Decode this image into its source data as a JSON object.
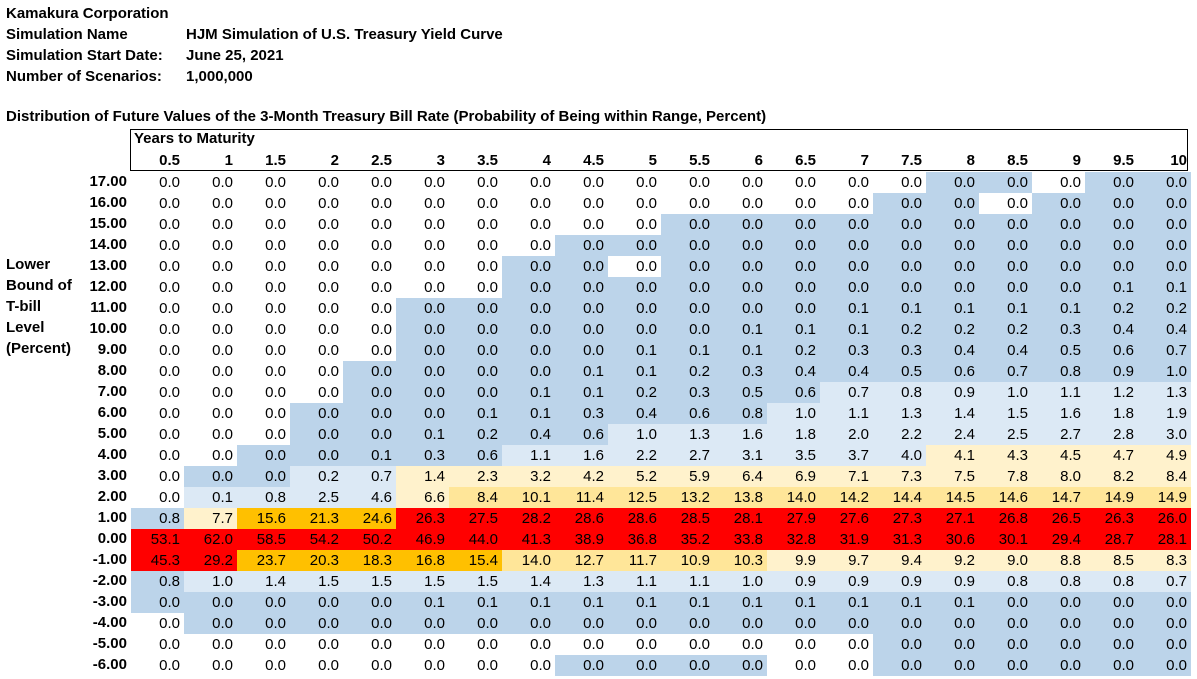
{
  "header": {
    "company": "Kamakura Corporation",
    "sim_name_label": "Simulation Name",
    "sim_name_value": "HJM Simulation of U.S. Treasury Yield Curve",
    "start_label": "Simulation Start Date:",
    "start_value": "June 25, 2021",
    "scenarios_label": "Number of Scenarios:",
    "scenarios_value": "1,000,000"
  },
  "title": "Distribution of Future Values of the 3-Month Treasury Bill Rate (Probability of Being within Range, Percent)",
  "column_group_label": "Years to Maturity",
  "row_axis_label": [
    "Lower",
    "Bound of",
    "T-bill",
    "Level",
    "(Percent)"
  ],
  "colors": {
    "white": "#ffffff",
    "light_blue": "#dce9f5",
    "blue": "#bcd4ea",
    "cream": "#fff2cc",
    "light_orange": "#ffe699",
    "orange": "#ffc000",
    "red": "#ff0000"
  },
  "chart_data": {
    "type": "heatmap",
    "title": "Distribution of Future Values of the 3-Month Treasury Bill Rate (Probability of Being within Range, Percent)",
    "xlabel": "Years to Maturity",
    "ylabel": "Lower Bound of T-bill Level (Percent)",
    "x": [
      "0.5",
      "1",
      "1.5",
      "2",
      "2.5",
      "3",
      "3.5",
      "4",
      "4.5",
      "5",
      "5.5",
      "6",
      "6.5",
      "7",
      "7.5",
      "8",
      "8.5",
      "9",
      "9.5",
      "10"
    ],
    "y": [
      "17.00",
      "16.00",
      "15.00",
      "14.00",
      "13.00",
      "12.00",
      "11.00",
      "10.00",
      "9.00",
      "8.00",
      "7.00",
      "6.00",
      "5.00",
      "4.00",
      "3.00",
      "2.00",
      "1.00",
      "0.00",
      "-1.00",
      "-2.00",
      "-3.00",
      "-4.00",
      "-5.00",
      "-6.00"
    ],
    "values": [
      [
        "0.0",
        "0.0",
        "0.0",
        "0.0",
        "0.0",
        "0.0",
        "0.0",
        "0.0",
        "0.0",
        "0.0",
        "0.0",
        "0.0",
        "0.0",
        "0.0",
        "0.0",
        "0.0",
        "0.0",
        "0.0",
        "0.0",
        "0.0"
      ],
      [
        "0.0",
        "0.0",
        "0.0",
        "0.0",
        "0.0",
        "0.0",
        "0.0",
        "0.0",
        "0.0",
        "0.0",
        "0.0",
        "0.0",
        "0.0",
        "0.0",
        "0.0",
        "0.0",
        "0.0",
        "0.0",
        "0.0",
        "0.0"
      ],
      [
        "0.0",
        "0.0",
        "0.0",
        "0.0",
        "0.0",
        "0.0",
        "0.0",
        "0.0",
        "0.0",
        "0.0",
        "0.0",
        "0.0",
        "0.0",
        "0.0",
        "0.0",
        "0.0",
        "0.0",
        "0.0",
        "0.0",
        "0.0"
      ],
      [
        "0.0",
        "0.0",
        "0.0",
        "0.0",
        "0.0",
        "0.0",
        "0.0",
        "0.0",
        "0.0",
        "0.0",
        "0.0",
        "0.0",
        "0.0",
        "0.0",
        "0.0",
        "0.0",
        "0.0",
        "0.0",
        "0.0",
        "0.0"
      ],
      [
        "0.0",
        "0.0",
        "0.0",
        "0.0",
        "0.0",
        "0.0",
        "0.0",
        "0.0",
        "0.0",
        "0.0",
        "0.0",
        "0.0",
        "0.0",
        "0.0",
        "0.0",
        "0.0",
        "0.0",
        "0.0",
        "0.0",
        "0.0"
      ],
      [
        "0.0",
        "0.0",
        "0.0",
        "0.0",
        "0.0",
        "0.0",
        "0.0",
        "0.0",
        "0.0",
        "0.0",
        "0.0",
        "0.0",
        "0.0",
        "0.0",
        "0.0",
        "0.0",
        "0.0",
        "0.0",
        "0.1",
        "0.1"
      ],
      [
        "0.0",
        "0.0",
        "0.0",
        "0.0",
        "0.0",
        "0.0",
        "0.0",
        "0.0",
        "0.0",
        "0.0",
        "0.0",
        "0.0",
        "0.0",
        "0.1",
        "0.1",
        "0.1",
        "0.1",
        "0.1",
        "0.2",
        "0.2"
      ],
      [
        "0.0",
        "0.0",
        "0.0",
        "0.0",
        "0.0",
        "0.0",
        "0.0",
        "0.0",
        "0.0",
        "0.0",
        "0.0",
        "0.1",
        "0.1",
        "0.1",
        "0.2",
        "0.2",
        "0.2",
        "0.3",
        "0.4",
        "0.4"
      ],
      [
        "0.0",
        "0.0",
        "0.0",
        "0.0",
        "0.0",
        "0.0",
        "0.0",
        "0.0",
        "0.0",
        "0.1",
        "0.1",
        "0.1",
        "0.2",
        "0.3",
        "0.3",
        "0.4",
        "0.4",
        "0.5",
        "0.6",
        "0.7"
      ],
      [
        "0.0",
        "0.0",
        "0.0",
        "0.0",
        "0.0",
        "0.0",
        "0.0",
        "0.0",
        "0.1",
        "0.1",
        "0.2",
        "0.3",
        "0.4",
        "0.4",
        "0.5",
        "0.6",
        "0.7",
        "0.8",
        "0.9",
        "1.0"
      ],
      [
        "0.0",
        "0.0",
        "0.0",
        "0.0",
        "0.0",
        "0.0",
        "0.0",
        "0.1",
        "0.1",
        "0.2",
        "0.3",
        "0.5",
        "0.6",
        "0.7",
        "0.8",
        "0.9",
        "1.0",
        "1.1",
        "1.2",
        "1.3"
      ],
      [
        "0.0",
        "0.0",
        "0.0",
        "0.0",
        "0.0",
        "0.0",
        "0.1",
        "0.1",
        "0.3",
        "0.4",
        "0.6",
        "0.8",
        "1.0",
        "1.1",
        "1.3",
        "1.4",
        "1.5",
        "1.6",
        "1.8",
        "1.9"
      ],
      [
        "0.0",
        "0.0",
        "0.0",
        "0.0",
        "0.0",
        "0.1",
        "0.2",
        "0.4",
        "0.6",
        "1.0",
        "1.3",
        "1.6",
        "1.8",
        "2.0",
        "2.2",
        "2.4",
        "2.5",
        "2.7",
        "2.8",
        "3.0"
      ],
      [
        "0.0",
        "0.0",
        "0.0",
        "0.0",
        "0.1",
        "0.3",
        "0.6",
        "1.1",
        "1.6",
        "2.2",
        "2.7",
        "3.1",
        "3.5",
        "3.7",
        "4.0",
        "4.1",
        "4.3",
        "4.5",
        "4.7",
        "4.9"
      ],
      [
        "0.0",
        "0.0",
        "0.0",
        "0.2",
        "0.7",
        "1.4",
        "2.3",
        "3.2",
        "4.2",
        "5.2",
        "5.9",
        "6.4",
        "6.9",
        "7.1",
        "7.3",
        "7.5",
        "7.8",
        "8.0",
        "8.2",
        "8.4"
      ],
      [
        "0.0",
        "0.1",
        "0.8",
        "2.5",
        "4.6",
        "6.6",
        "8.4",
        "10.1",
        "11.4",
        "12.5",
        "13.2",
        "13.8",
        "14.0",
        "14.2",
        "14.4",
        "14.5",
        "14.6",
        "14.7",
        "14.9",
        "14.9"
      ],
      [
        "0.8",
        "7.7",
        "15.6",
        "21.3",
        "24.6",
        "26.3",
        "27.5",
        "28.2",
        "28.6",
        "28.6",
        "28.5",
        "28.1",
        "27.9",
        "27.6",
        "27.3",
        "27.1",
        "26.8",
        "26.5",
        "26.3",
        "26.0"
      ],
      [
        "53.1",
        "62.0",
        "58.5",
        "54.2",
        "50.2",
        "46.9",
        "44.0",
        "41.3",
        "38.9",
        "36.8",
        "35.2",
        "33.8",
        "32.8",
        "31.9",
        "31.3",
        "30.6",
        "30.1",
        "29.4",
        "28.7",
        "28.1"
      ],
      [
        "45.3",
        "29.2",
        "23.7",
        "20.3",
        "18.3",
        "16.8",
        "15.4",
        "14.0",
        "12.7",
        "11.7",
        "10.9",
        "10.3",
        "9.9",
        "9.7",
        "9.4",
        "9.2",
        "9.0",
        "8.8",
        "8.5",
        "8.3"
      ],
      [
        "0.8",
        "1.0",
        "1.4",
        "1.5",
        "1.5",
        "1.5",
        "1.5",
        "1.4",
        "1.3",
        "1.1",
        "1.1",
        "1.0",
        "0.9",
        "0.9",
        "0.9",
        "0.9",
        "0.8",
        "0.8",
        "0.8",
        "0.7"
      ],
      [
        "0.0",
        "0.0",
        "0.0",
        "0.0",
        "0.0",
        "0.1",
        "0.1",
        "0.1",
        "0.1",
        "0.1",
        "0.1",
        "0.1",
        "0.1",
        "0.1",
        "0.1",
        "0.1",
        "0.0",
        "0.0",
        "0.0",
        "0.0"
      ],
      [
        "0.0",
        "0.0",
        "0.0",
        "0.0",
        "0.0",
        "0.0",
        "0.0",
        "0.0",
        "0.0",
        "0.0",
        "0.0",
        "0.0",
        "0.0",
        "0.0",
        "0.0",
        "0.0",
        "0.0",
        "0.0",
        "0.0",
        "0.0"
      ],
      [
        "0.0",
        "0.0",
        "0.0",
        "0.0",
        "0.0",
        "0.0",
        "0.0",
        "0.0",
        "0.0",
        "0.0",
        "0.0",
        "0.0",
        "0.0",
        "0.0",
        "0.0",
        "0.0",
        "0.0",
        "0.0",
        "0.0",
        "0.0"
      ],
      [
        "0.0",
        "0.0",
        "0.0",
        "0.0",
        "0.0",
        "0.0",
        "0.0",
        "0.0",
        "0.0",
        "0.0",
        "0.0",
        "0.0",
        "0.0",
        "0.0",
        "0.0",
        "0.0",
        "0.0",
        "0.0",
        "0.0",
        "0.0"
      ]
    ],
    "color_classes": [
      "WWWWWWWWWWWWWWWBBWBB",
      "WWWWWWWWWWWWWWBBWBBB",
      "WWWWWWWWWWBBBBBBBBBB",
      "WWWWWWWWBBBBBBBBBBBB",
      "WWWWWWWBBWBBBBBBBBBB",
      "WWWWWWWBBBBBBBBBBBBB",
      "WWWWWBBBBBBBBBBBBBBB",
      "WWWWWBBBBBBBBBBBBBBB",
      "WWWWWBBBBBBBBBBBBBBB",
      "WWWWBBBBBBBBBBBBBBBB",
      "WWWWBBBBBBBBBLLLLLLL",
      "WWWBBBBBBBBBLLLLLLLL",
      "WWWBBBBBBLLLLLLLLLLL",
      "WWBBBBBLLLLLLLLCCCCC",
      "WBBLLCCCCCCCCCCCCCCC",
      "WLLLLCOOOOOOOOOOOOOO",
      "BCOOORRRRRRRRRRRRRRR",
      "RRRRRRRRRRRRRRRRRRRR",
      "RROOOOOOOOOOCCCCCCCC",
      "BLLLLLLLLLLLLLLLLLLL",
      "BBBBBBBBBBBBBBBBBBBB",
      "WBBBBBBBBBBBBBBBBBBB",
      "WWWWWWWWWWWWWWBBBBBB",
      "WWWWWWWWBBBBWWBBBBBB"
    ]
  }
}
